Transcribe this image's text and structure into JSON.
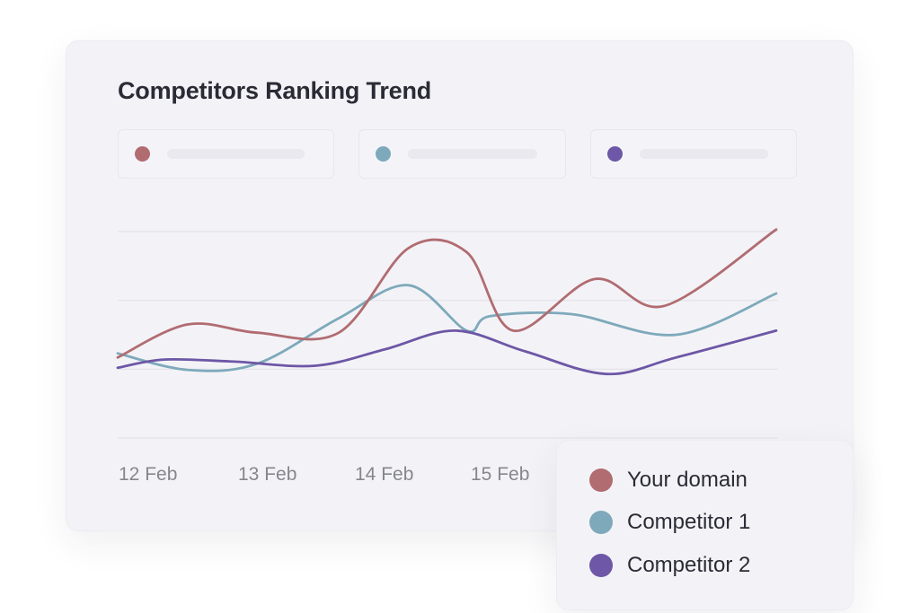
{
  "colors": {
    "your_domain": "#b16c71",
    "competitor_1": "#7ea9bb",
    "competitor_2": "#6d57a6",
    "grid": "#e1e1e7"
  },
  "chart_data": {
    "type": "line",
    "title": "Competitors Ranking Trend",
    "categories": [
      "12 Feb",
      "13 Feb",
      "14 Feb",
      "15 Feb"
    ],
    "grid": true,
    "legend_placement": "bottom-right",
    "series": [
      {
        "name": "Your domain",
        "x": [
          0,
          0.6,
          1.2,
          1.9,
          2.5,
          3.0,
          3.4,
          4.1,
          4.7,
          5.66
        ],
        "values": [
          39,
          55,
          51,
          51,
          92,
          90,
          52,
          77,
          64,
          101
        ]
      },
      {
        "name": "Competitor 1",
        "x": [
          0,
          0.6,
          1.2,
          1.9,
          2.5,
          3.0,
          3.2,
          3.9,
          4.8,
          5.66
        ],
        "values": [
          41,
          33,
          36,
          58,
          74,
          52,
          59,
          60,
          50,
          70
        ]
      },
      {
        "name": "Competitor 2",
        "x": [
          0,
          0.4,
          1.0,
          1.7,
          2.3,
          2.9,
          3.5,
          4.2,
          4.8,
          5.66
        ],
        "values": [
          34,
          38,
          37,
          35,
          43,
          52,
          42,
          31,
          39,
          52
        ]
      }
    ]
  }
}
